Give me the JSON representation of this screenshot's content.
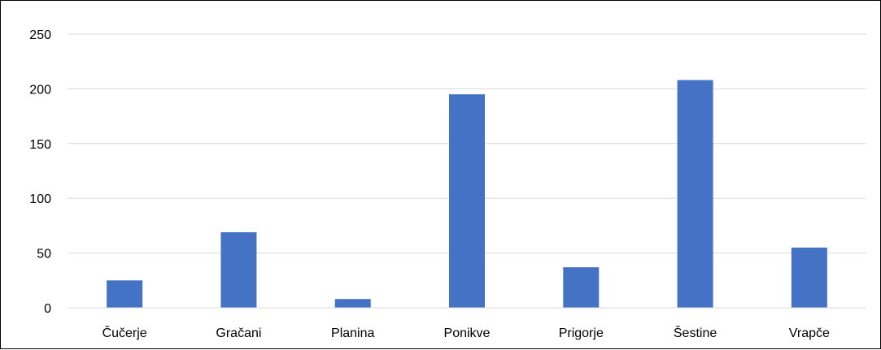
{
  "chart_data": {
    "type": "bar",
    "categories": [
      "Čučerje",
      "Gračani",
      "Planina",
      "Ponikve",
      "Prigorje",
      "Šestine",
      "Vrapče"
    ],
    "values": [
      25,
      69,
      8,
      195,
      37,
      208,
      55
    ],
    "y_ticks": [
      "0",
      "50",
      "100",
      "150",
      "200",
      "250"
    ],
    "ylim": [
      0,
      250
    ],
    "grid": true,
    "bar_color": "#4472C4",
    "grid_color": "#D9D9D9",
    "legend": "none"
  }
}
